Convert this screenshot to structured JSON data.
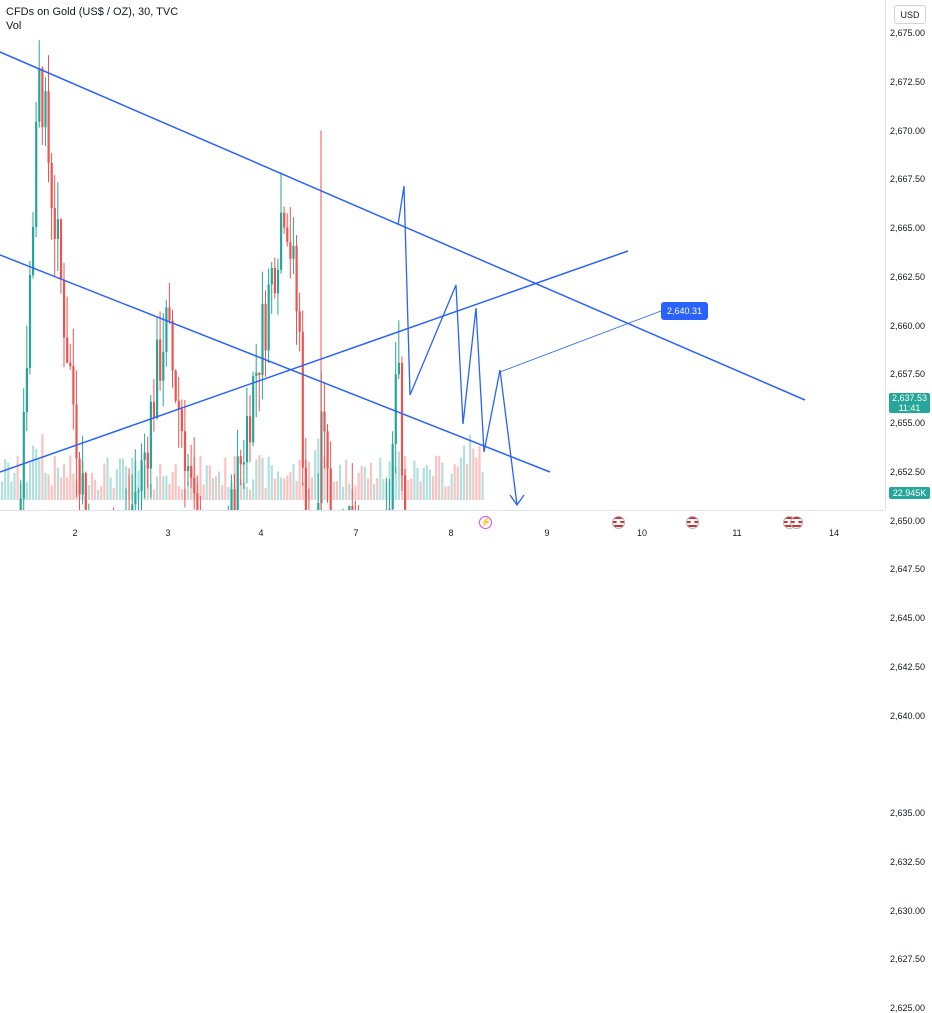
{
  "header": {
    "title": "CFDs on Gold (US$ / OZ), 30, TVC",
    "indicator": "Vol"
  },
  "price_axis": {
    "currency_button": "USD",
    "ticks": [
      "2,675.00",
      "2,672.50",
      "2,670.00",
      "2,667.50",
      "2,665.00",
      "2,662.50",
      "2,660.00",
      "2,657.50",
      "2,655.00",
      "2,652.50",
      "2,650.00",
      "2,647.50",
      "2,645.00",
      "2,642.50",
      "2,640.00",
      "2,635.00",
      "2,632.50",
      "2,630.00",
      "2,627.50",
      "2,625.00"
    ],
    "last_price": "2,637.53",
    "countdown": "11:41",
    "volume_value": "22.945K"
  },
  "time_axis": {
    "ticks": [
      "2",
      "3",
      "4",
      "7",
      "8",
      "9",
      "10",
      "11",
      "14"
    ]
  },
  "callout": {
    "label": "2,640.31"
  },
  "events": [
    "flash-event-icon",
    "us-flag-icon",
    "us-flag-icon",
    "us-flag-icon",
    "us-flag-icon"
  ],
  "colors": {
    "up": "#26a69a",
    "down": "#ef5350",
    "trendline": "#2962ff",
    "callout_bg": "#2962ff",
    "last_price": "#26a69a"
  },
  "chart_data": {
    "type": "candlestick",
    "symbol": "CFDs on Gold (US$ / OZ)",
    "interval": "30",
    "y_range": [
      2624,
      2676
    ],
    "last_price": 2637.53,
    "annotation_price": 2640.31,
    "x_labels": [
      "2",
      "3",
      "4",
      "7",
      "8",
      "9",
      "10",
      "11",
      "14"
    ]
  }
}
